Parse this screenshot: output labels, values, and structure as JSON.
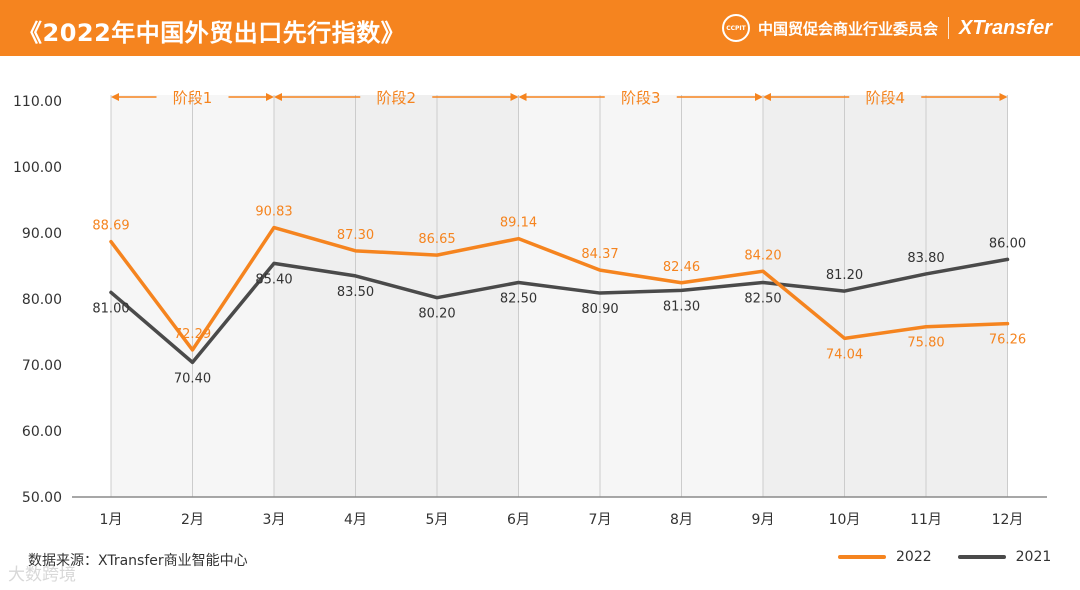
{
  "header": {
    "title": "《2022年中国外贸出口先行指数》",
    "seal_text": "CCPIT",
    "org": "中国贸促会商业行业委员会",
    "brand": "XTransfer"
  },
  "chart_data": {
    "type": "line",
    "categories": [
      "1月",
      "2月",
      "3月",
      "4月",
      "5月",
      "6月",
      "7月",
      "8月",
      "9月",
      "10月",
      "11月",
      "12月"
    ],
    "series": [
      {
        "name": "2022",
        "color": "#f5841f",
        "values": [
          88.69,
          72.29,
          90.83,
          87.3,
          86.65,
          89.14,
          84.37,
          82.46,
          84.2,
          74.04,
          75.8,
          76.26
        ]
      },
      {
        "name": "2021",
        "color": "#4a4a4a",
        "values": [
          81.0,
          70.4,
          85.4,
          83.5,
          80.2,
          82.5,
          80.9,
          81.3,
          82.5,
          81.2,
          83.8,
          86.0
        ]
      }
    ],
    "ylim": [
      50,
      110
    ],
    "yticks": [
      50,
      60,
      70,
      80,
      90,
      100,
      110
    ],
    "phases": [
      {
        "label": "阶段1",
        "start": 0,
        "end": 2
      },
      {
        "label": "阶段2",
        "start": 2,
        "end": 5
      },
      {
        "label": "阶段3",
        "start": 5,
        "end": 8
      },
      {
        "label": "阶段4",
        "start": 8,
        "end": 11
      }
    ]
  },
  "footer": {
    "source": "数据来源：XTransfer商业智能中心",
    "watermark": "大数跨境"
  },
  "legend": [
    {
      "name": "2022",
      "color": "#f5841f"
    },
    {
      "name": "2021",
      "color": "#4a4a4a"
    }
  ]
}
